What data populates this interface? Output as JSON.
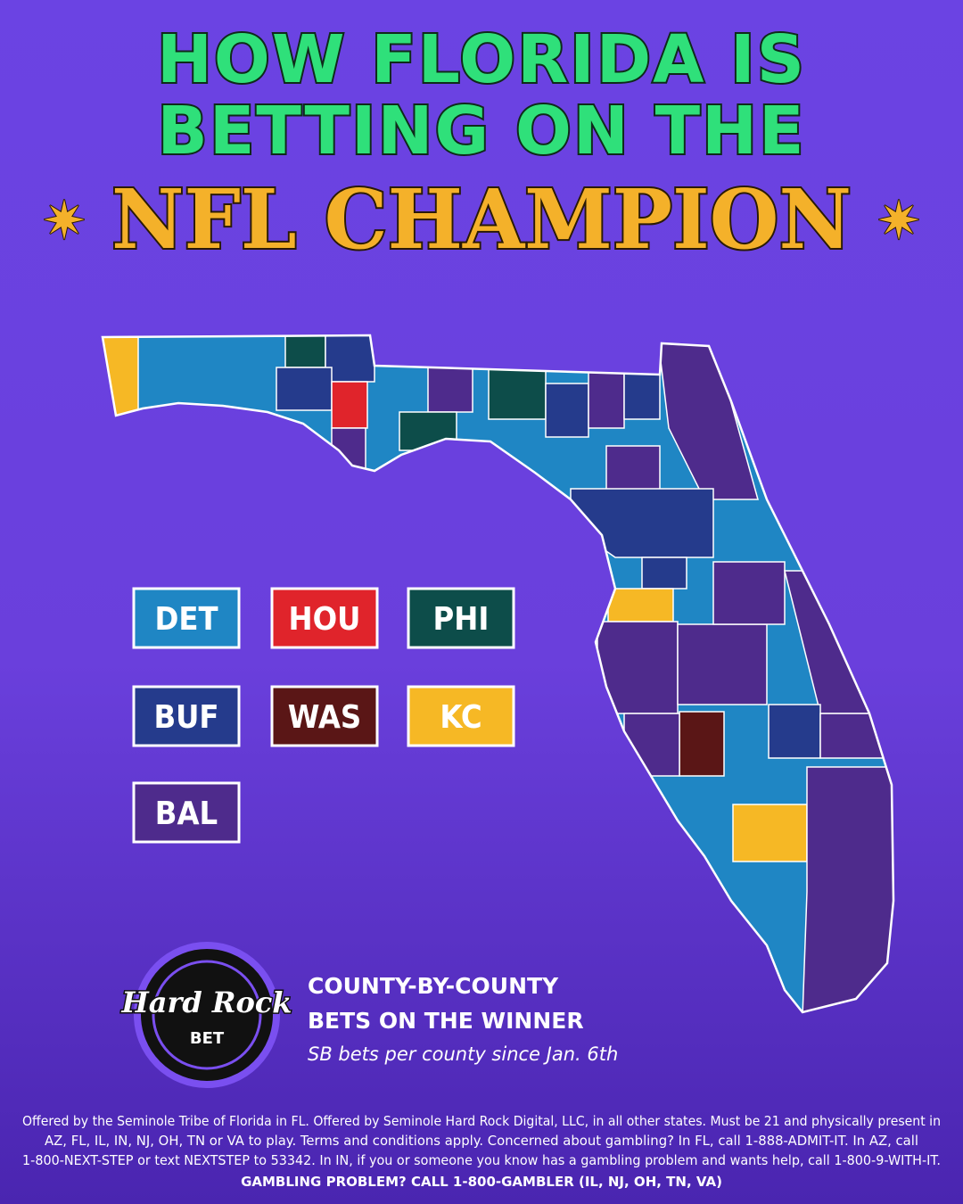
{
  "header": {
    "title_lines": [
      "HOW FLORIDA IS",
      "BETTING ON THE"
    ],
    "highlight": "NFL CHAMPION"
  },
  "legend": [
    {
      "label": "DET",
      "color": "#1f86c4"
    },
    {
      "label": "HOU",
      "color": "#e0242b"
    },
    {
      "label": "PHI",
      "color": "#0d4d4a"
    },
    {
      "label": "BUF",
      "color": "#253b8c"
    },
    {
      "label": "WAS",
      "color": "#5a1616"
    },
    {
      "label": "KC",
      "color": "#f6b825"
    },
    {
      "label": "BAL",
      "color": "#4e2b8c"
    }
  ],
  "logo": {
    "brand": "Hard Rock",
    "sub": "BET"
  },
  "caption": {
    "lines": [
      "COUNTY-BY-COUNTY",
      "BETS ON THE WINNER"
    ],
    "note": "SB bets per county since Jan. 6th"
  },
  "footer": {
    "disclaimer_lines": [
      "Offered by the Seminole Tribe of Florida in FL. Offered by Seminole Hard Rock Digital, LLC, in all other states. Must be 21 and physically present in",
      "AZ, FL, IL, IN, NJ, OH, TN or VA to play. Terms and conditions apply. Concerned about gambling? In FL, call 1-888-ADMIT-IT. In AZ, call",
      "1-800-NEXT-STEP or text NEXTSTEP to 53342. In IN, if you or someone you know has a gambling problem and wants help, call 1-800-9-WITH-IT."
    ],
    "hotline": "GAMBLING PROBLEM? CALL 1-800-GAMBLER (IL, NJ, OH, TN, VA)"
  }
}
